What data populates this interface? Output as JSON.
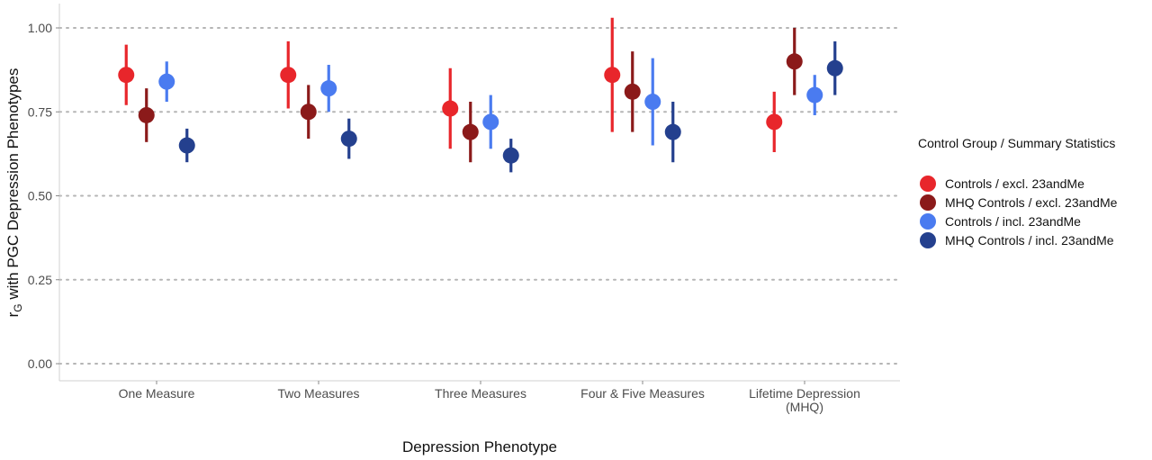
{
  "chart_data": {
    "type": "scatter",
    "subtype": "point-range",
    "title": "",
    "xlabel": "Depression Phenotype",
    "ylabel_main": "r",
    "ylabel_sub": "G",
    "ylabel_rest": " with PGC Depression Phenotypes",
    "ylim": [
      0,
      1.05
    ],
    "yticks": [
      0,
      0.25,
      0.5,
      0.75,
      1.0
    ],
    "ytick_labels": [
      "0.00",
      "0.25",
      "0.50",
      "0.75",
      "1.00"
    ],
    "grid": "horizontal dotted",
    "categories": [
      [
        "One Measure"
      ],
      [
        "Two Measures"
      ],
      [
        "Three Measures"
      ],
      [
        "Four & Five Measures"
      ],
      [
        "Lifetime Depression",
        "(MHQ)"
      ]
    ],
    "legend": {
      "title": "Control Group / Summary Statistics",
      "placement": "right"
    },
    "series": [
      {
        "name": "Controls / excl. 23andMe",
        "color": "#e8262b",
        "values": [
          0.86,
          0.86,
          0.76,
          0.86,
          0.72
        ],
        "lower": [
          0.77,
          0.76,
          0.64,
          0.69,
          0.63
        ],
        "upper": [
          0.95,
          0.96,
          0.88,
          1.03,
          0.81
        ]
      },
      {
        "name": "MHQ Controls / excl. 23andMe",
        "color": "#8b1a1a",
        "values": [
          0.74,
          0.75,
          0.69,
          0.81,
          0.9
        ],
        "lower": [
          0.66,
          0.67,
          0.6,
          0.69,
          0.8
        ],
        "upper": [
          0.82,
          0.83,
          0.78,
          0.93,
          1.0
        ]
      },
      {
        "name": "Controls / incl. 23andMe",
        "color": "#4a7bf0",
        "values": [
          0.84,
          0.82,
          0.72,
          0.78,
          0.8
        ],
        "lower": [
          0.78,
          0.75,
          0.64,
          0.65,
          0.74
        ],
        "upper": [
          0.9,
          0.89,
          0.8,
          0.91,
          0.86
        ]
      },
      {
        "name": "MHQ Controls / incl. 23andMe",
        "color": "#24408e",
        "values": [
          0.65,
          0.67,
          0.62,
          0.69,
          0.88
        ],
        "lower": [
          0.6,
          0.61,
          0.57,
          0.6,
          0.8
        ],
        "upper": [
          0.7,
          0.73,
          0.67,
          0.78,
          0.96
        ]
      }
    ]
  }
}
